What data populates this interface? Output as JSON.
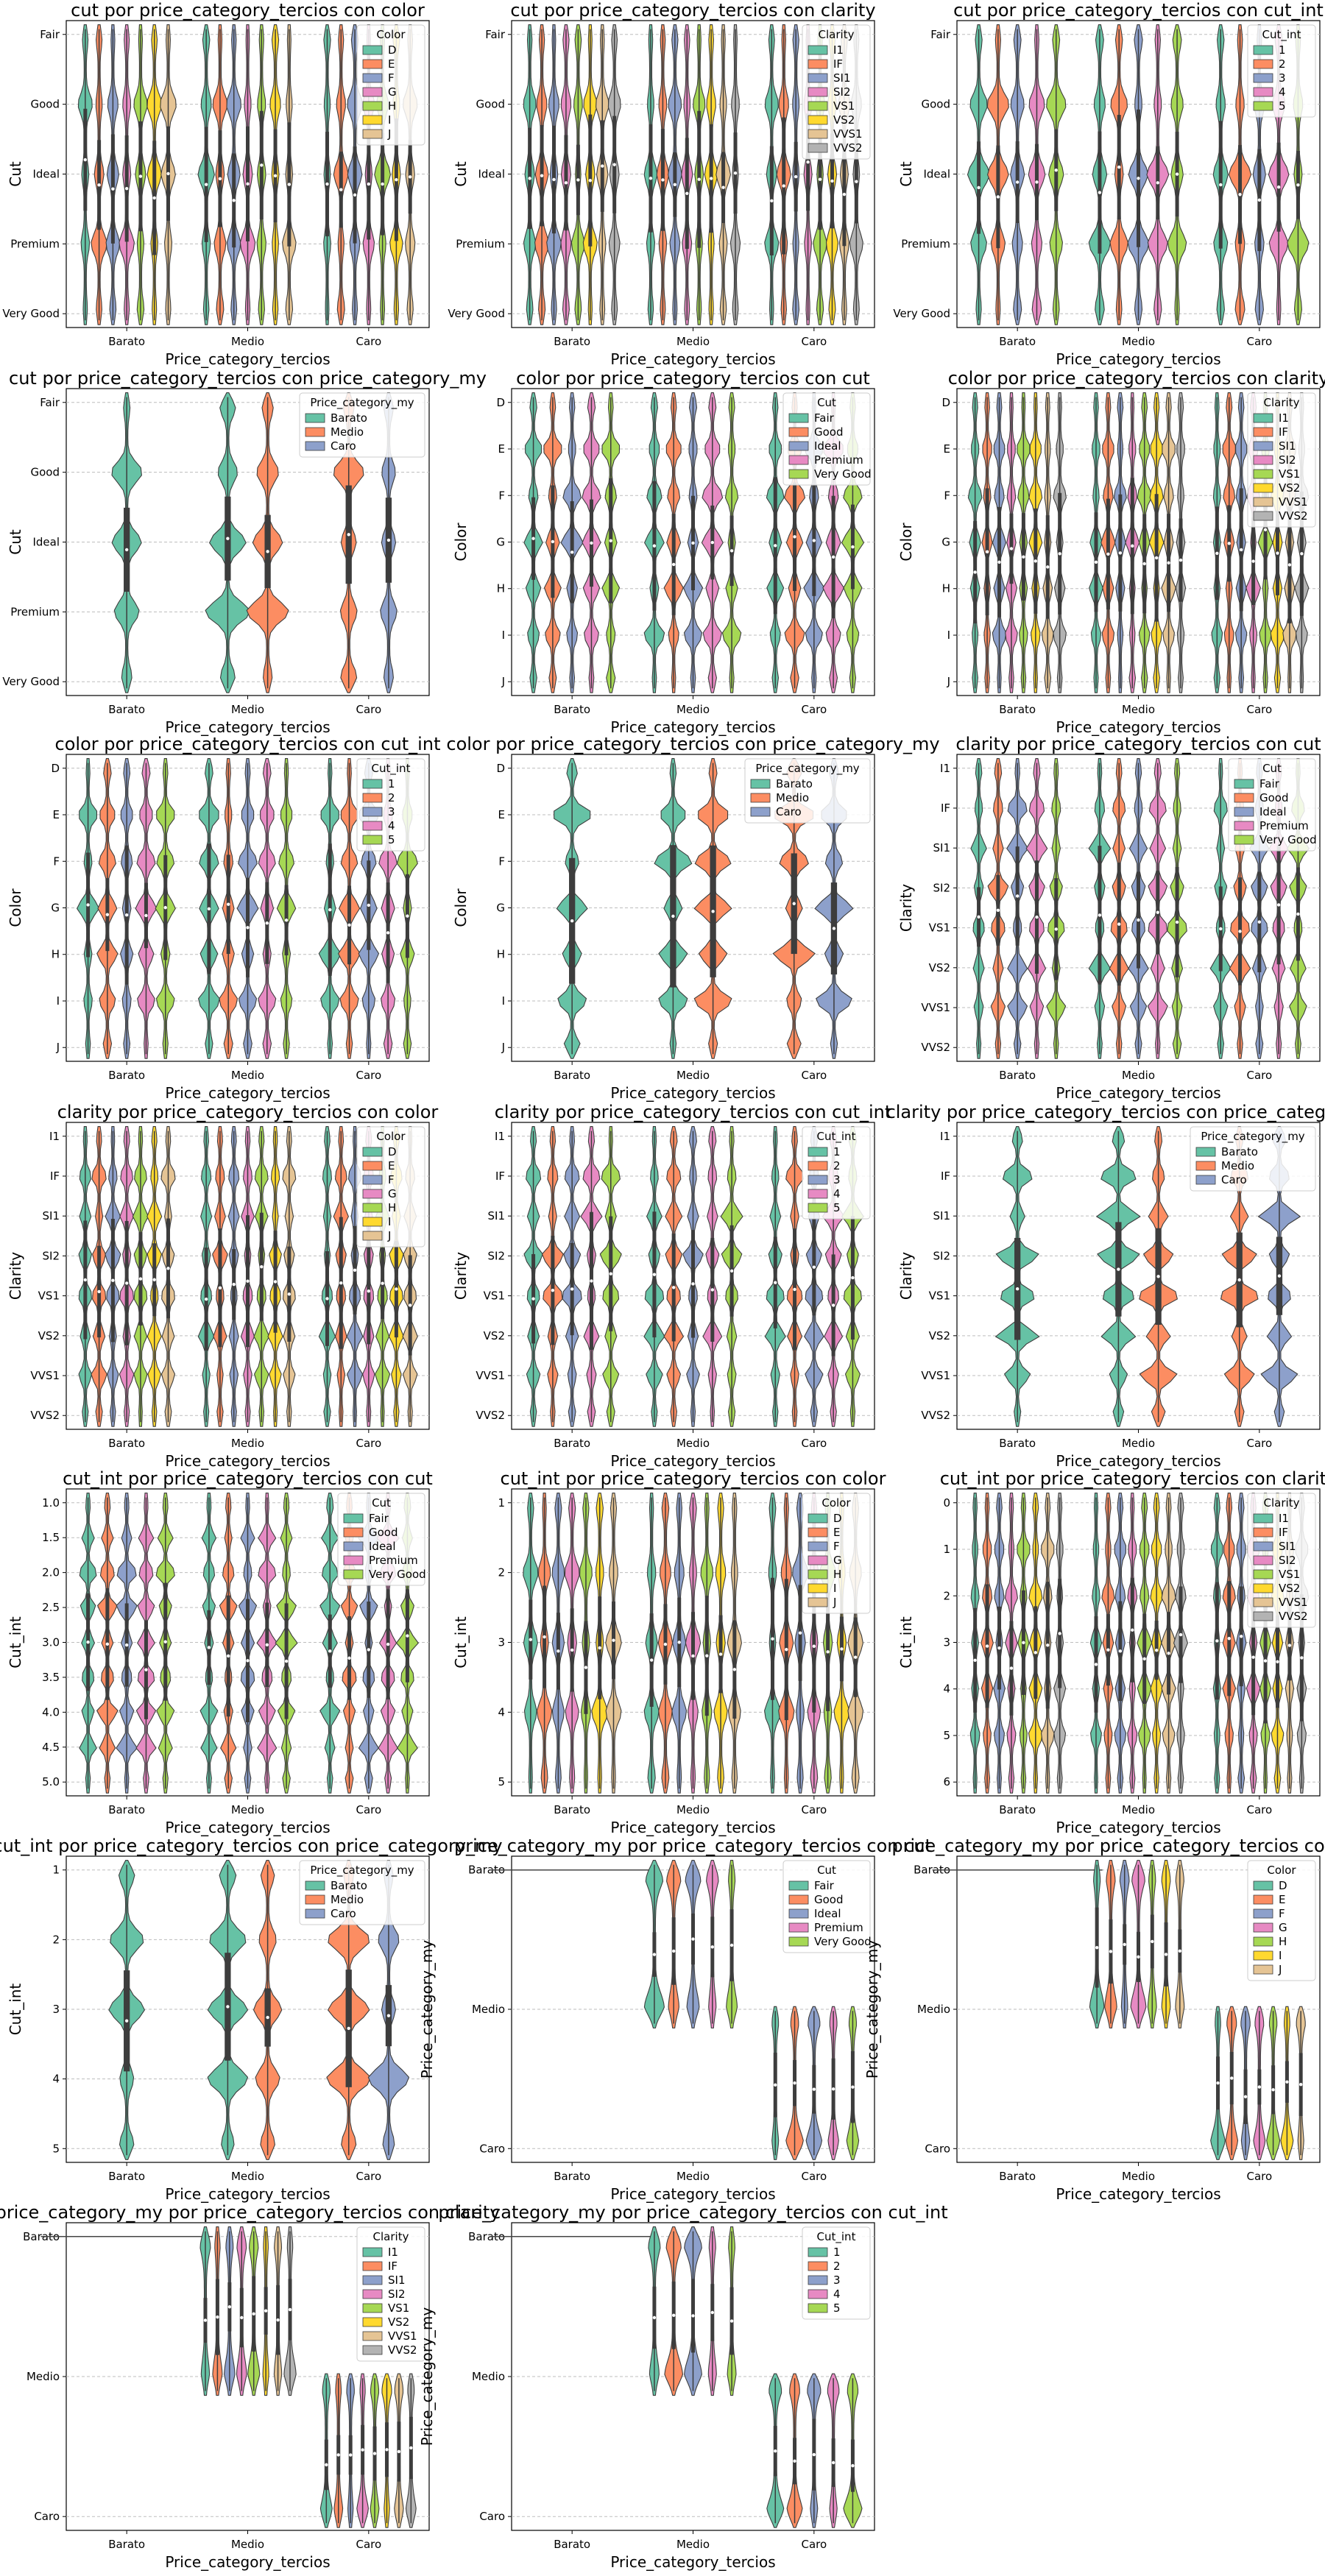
{
  "palettes": {
    "p3": [
      "#66c2a5",
      "#fc8d62",
      "#8da0cb"
    ],
    "p5": [
      "#66c2a5",
      "#fc8d62",
      "#8da0cb",
      "#e78ac3",
      "#a6d854"
    ],
    "p7": [
      "#66c2a5",
      "#fc8d62",
      "#8da0cb",
      "#e78ac3",
      "#a6d854",
      "#ffd92f",
      "#e5c494"
    ],
    "p8": [
      "#66c2a5",
      "#fc8d62",
      "#8da0cb",
      "#e78ac3",
      "#a6d854",
      "#ffd92f",
      "#e5c494",
      "#b3b3b3"
    ]
  },
  "chart_data": [
    {
      "type": "violin",
      "title": "cut por price_category_tercios con color",
      "xlabel": "Price_category_tercios",
      "ylabel": "Cut",
      "categories": [
        "Barato",
        "Medio",
        "Caro"
      ],
      "y_ticks": [
        "Fair",
        "Good",
        "Ideal",
        "Premium",
        "Very Good"
      ],
      "legend_title": "Color",
      "hue": [
        "D",
        "E",
        "F",
        "G",
        "H",
        "I",
        "J"
      ],
      "legend_position": "top-right"
    },
    {
      "type": "violin",
      "title": "cut por price_category_tercios con clarity",
      "xlabel": "Price_category_tercios",
      "ylabel": "Cut",
      "categories": [
        "Barato",
        "Medio",
        "Caro"
      ],
      "y_ticks": [
        "Fair",
        "Good",
        "Ideal",
        "Premium",
        "Very Good"
      ],
      "legend_title": "Clarity",
      "hue": [
        "I1",
        "IF",
        "SI1",
        "SI2",
        "VS1",
        "VS2",
        "VVS1",
        "VVS2"
      ],
      "legend_position": "top-right"
    },
    {
      "type": "violin",
      "title": "cut por price_category_tercios con cut_int",
      "xlabel": "Price_category_tercios",
      "ylabel": "Cut",
      "categories": [
        "Barato",
        "Medio",
        "Caro"
      ],
      "y_ticks": [
        "Fair",
        "Good",
        "Ideal",
        "Premium",
        "Very Good"
      ],
      "legend_title": "Cut_int",
      "hue": [
        "1",
        "2",
        "3",
        "4",
        "5"
      ],
      "legend_position": "top-right"
    },
    {
      "type": "violin",
      "title": "cut por price_category_tercios con price_category_my",
      "xlabel": "Price_category_tercios",
      "ylabel": "Cut",
      "categories": [
        "Barato",
        "Medio",
        "Caro"
      ],
      "y_ticks": [
        "Fair",
        "Good",
        "Ideal",
        "Premium",
        "Very Good"
      ],
      "legend_title": "Price_category_my",
      "hue": [
        "Barato",
        "Medio",
        "Caro"
      ],
      "legend_position": "top-right"
    },
    {
      "type": "violin",
      "title": "color por price_category_tercios con cut",
      "xlabel": "Price_category_tercios",
      "ylabel": "Color",
      "categories": [
        "Barato",
        "Medio",
        "Caro"
      ],
      "y_ticks": [
        "D",
        "E",
        "F",
        "G",
        "H",
        "I",
        "J"
      ],
      "legend_title": "Cut",
      "hue": [
        "Fair",
        "Good",
        "Ideal",
        "Premium",
        "Very Good"
      ],
      "legend_position": "top-right"
    },
    {
      "type": "violin",
      "title": "color por price_category_tercios con clarity",
      "xlabel": "Price_category_tercios",
      "ylabel": "Color",
      "categories": [
        "Barato",
        "Medio",
        "Caro"
      ],
      "y_ticks": [
        "D",
        "E",
        "F",
        "G",
        "H",
        "I",
        "J"
      ],
      "legend_title": "Clarity",
      "hue": [
        "I1",
        "IF",
        "SI1",
        "SI2",
        "VS1",
        "VS2",
        "VVS1",
        "VVS2"
      ],
      "legend_position": "top-right"
    },
    {
      "type": "violin",
      "title": "color por price_category_tercios con cut_int",
      "xlabel": "Price_category_tercios",
      "ylabel": "Color",
      "categories": [
        "Barato",
        "Medio",
        "Caro"
      ],
      "y_ticks": [
        "D",
        "E",
        "F",
        "G",
        "H",
        "I",
        "J"
      ],
      "legend_title": "Cut_int",
      "hue": [
        "1",
        "2",
        "3",
        "4",
        "5"
      ],
      "legend_position": "top-right"
    },
    {
      "type": "violin",
      "title": "color por price_category_tercios con price_category_my",
      "xlabel": "Price_category_tercios",
      "ylabel": "Color",
      "categories": [
        "Barato",
        "Medio",
        "Caro"
      ],
      "y_ticks": [
        "D",
        "E",
        "F",
        "G",
        "H",
        "I",
        "J"
      ],
      "legend_title": "Price_category_my",
      "hue": [
        "Barato",
        "Medio",
        "Caro"
      ],
      "legend_position": "top-right"
    },
    {
      "type": "violin",
      "title": "clarity por price_category_tercios con cut",
      "xlabel": "Price_category_tercios",
      "ylabel": "Clarity",
      "categories": [
        "Barato",
        "Medio",
        "Caro"
      ],
      "y_ticks": [
        "I1",
        "IF",
        "SI1",
        "SI2",
        "VS1",
        "VS2",
        "VVS1",
        "VVS2"
      ],
      "legend_title": "Cut",
      "hue": [
        "Fair",
        "Good",
        "Ideal",
        "Premium",
        "Very Good"
      ],
      "legend_position": "top-right"
    },
    {
      "type": "violin",
      "title": "clarity por price_category_tercios con color",
      "xlabel": "Price_category_tercios",
      "ylabel": "Clarity",
      "categories": [
        "Barato",
        "Medio",
        "Caro"
      ],
      "y_ticks": [
        "I1",
        "IF",
        "SI1",
        "SI2",
        "VS1",
        "VS2",
        "VVS1",
        "VVS2"
      ],
      "legend_title": "Color",
      "hue": [
        "D",
        "E",
        "F",
        "G",
        "H",
        "I",
        "J"
      ],
      "legend_position": "top-right"
    },
    {
      "type": "violin",
      "title": "clarity por price_category_tercios con cut_int",
      "xlabel": "Price_category_tercios",
      "ylabel": "Clarity",
      "categories": [
        "Barato",
        "Medio",
        "Caro"
      ],
      "y_ticks": [
        "I1",
        "IF",
        "SI1",
        "SI2",
        "VS1",
        "VS2",
        "VVS1",
        "VVS2"
      ],
      "legend_title": "Cut_int",
      "hue": [
        "1",
        "2",
        "3",
        "4",
        "5"
      ],
      "legend_position": "top-right"
    },
    {
      "type": "violin",
      "title": "clarity por price_category_tercios con price_category_my",
      "xlabel": "Price_category_tercios",
      "ylabel": "Clarity",
      "categories": [
        "Barato",
        "Medio",
        "Caro"
      ],
      "y_ticks": [
        "I1",
        "IF",
        "SI1",
        "SI2",
        "VS1",
        "VS2",
        "VVS1",
        "VVS2"
      ],
      "legend_title": "Price_category_my",
      "hue": [
        "Barato",
        "Medio",
        "Caro"
      ],
      "legend_position": "top-right"
    },
    {
      "type": "violin",
      "title": "cut_int por price_category_tercios con cut",
      "xlabel": "Price_category_tercios",
      "ylabel": "Cut_int",
      "categories": [
        "Barato",
        "Medio",
        "Caro"
      ],
      "y_ticks": [
        "1.0",
        "1.5",
        "2.0",
        "2.5",
        "3.0",
        "3.5",
        "4.0",
        "4.5",
        "5.0"
      ],
      "legend_title": "Cut",
      "hue": [
        "Fair",
        "Good",
        "Ideal",
        "Premium",
        "Very Good"
      ],
      "legend_position": "top-right"
    },
    {
      "type": "violin",
      "title": "cut_int por price_category_tercios con color",
      "xlabel": "Price_category_tercios",
      "ylabel": "Cut_int",
      "categories": [
        "Barato",
        "Medio",
        "Caro"
      ],
      "y_ticks": [
        "1",
        "2",
        "3",
        "4",
        "5"
      ],
      "legend_title": "Color",
      "hue": [
        "D",
        "E",
        "F",
        "G",
        "H",
        "I",
        "J"
      ],
      "legend_position": "top-right"
    },
    {
      "type": "violin",
      "title": "cut_int por price_category_tercios con clarity",
      "xlabel": "Price_category_tercios",
      "ylabel": "Cut_int",
      "categories": [
        "Barato",
        "Medio",
        "Caro"
      ],
      "y_ticks": [
        "0",
        "1",
        "2",
        "3",
        "4",
        "5",
        "6"
      ],
      "legend_title": "Clarity",
      "hue": [
        "I1",
        "IF",
        "SI1",
        "SI2",
        "VS1",
        "VS2",
        "VVS1",
        "VVS2"
      ],
      "legend_position": "top-right"
    },
    {
      "type": "violin",
      "title": "cut_int por price_category_tercios con price_category_my",
      "xlabel": "Price_category_tercios",
      "ylabel": "Cut_int",
      "categories": [
        "Barato",
        "Medio",
        "Caro"
      ],
      "y_ticks": [
        "1",
        "2",
        "3",
        "4",
        "5"
      ],
      "legend_title": "Price_category_my",
      "hue": [
        "Barato",
        "Medio",
        "Caro"
      ],
      "legend_position": "top-right"
    },
    {
      "type": "violin",
      "title": "price_category_my por price_category_tercios con cut",
      "xlabel": "Price_category_tercios",
      "ylabel": "Price_category_my",
      "categories": [
        "Barato",
        "Medio",
        "Caro"
      ],
      "y_ticks": [
        "Barato",
        "Medio",
        "Caro"
      ],
      "legend_title": "Cut",
      "hue": [
        "Fair",
        "Good",
        "Ideal",
        "Premium",
        "Very Good"
      ],
      "legend_position": "top-right"
    },
    {
      "type": "violin",
      "title": "price_category_my por price_category_tercios con color",
      "xlabel": "Price_category_tercios",
      "ylabel": "Price_category_my",
      "categories": [
        "Barato",
        "Medio",
        "Caro"
      ],
      "y_ticks": [
        "Barato",
        "Medio",
        "Caro"
      ],
      "legend_title": "Color",
      "hue": [
        "D",
        "E",
        "F",
        "G",
        "H",
        "I",
        "J"
      ],
      "legend_position": "top-right"
    },
    {
      "type": "violin",
      "title": "price_category_my por price_category_tercios con clarity",
      "xlabel": "Price_category_tercios",
      "ylabel": "Price_category_my",
      "categories": [
        "Barato",
        "Medio",
        "Caro"
      ],
      "y_ticks": [
        "Barato",
        "Medio",
        "Caro"
      ],
      "legend_title": "Clarity",
      "hue": [
        "I1",
        "IF",
        "SI1",
        "SI2",
        "VS1",
        "VS2",
        "VVS1",
        "VVS2"
      ],
      "legend_position": "top-right"
    },
    {
      "type": "violin",
      "title": "price_category_my por price_category_tercios con cut_int",
      "xlabel": "Price_category_tercios",
      "ylabel": "Price_category_my",
      "categories": [
        "Barato",
        "Medio",
        "Caro"
      ],
      "y_ticks": [
        "Barato",
        "Medio",
        "Caro"
      ],
      "legend_title": "Cut_int",
      "hue": [
        "1",
        "2",
        "3",
        "4",
        "5"
      ],
      "legend_position": "top-right"
    }
  ]
}
